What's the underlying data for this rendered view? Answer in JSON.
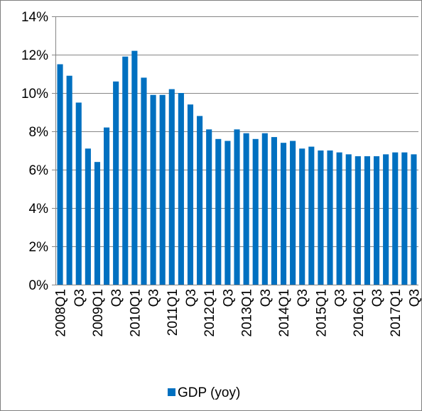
{
  "chart_data": {
    "type": "bar",
    "categories": [
      "2008Q1",
      "2008Q2",
      "2008Q3",
      "2008Q4",
      "2009Q1",
      "2009Q2",
      "2009Q3",
      "2009Q4",
      "2010Q1",
      "2010Q2",
      "2010Q3",
      "2010Q4",
      "2011Q1",
      "2011Q2",
      "2011Q3",
      "2011Q4",
      "2012Q1",
      "2012Q2",
      "2012Q3",
      "2012Q4",
      "2013Q1",
      "2013Q2",
      "2013Q3",
      "2013Q4",
      "2014Q1",
      "2014Q2",
      "2014Q3",
      "2014Q4",
      "2015Q1",
      "2015Q2",
      "2015Q3",
      "2015Q4",
      "2016Q1",
      "2016Q2",
      "2016Q3",
      "2016Q4",
      "2017Q1",
      "2017Q2",
      "2017Q3"
    ],
    "tick_labels": [
      "2008Q1",
      "",
      "Q3",
      "",
      "2009Q1",
      "",
      "Q3",
      "",
      "2010Q1",
      "",
      "Q3",
      "",
      "2011Q1",
      "",
      "Q3",
      "",
      "2012Q1",
      "",
      "Q3",
      "",
      "2013Q1",
      "",
      "Q3",
      "",
      "2014Q1",
      "",
      "Q3",
      "",
      "2015Q1",
      "",
      "Q3",
      "",
      "2016Q1",
      "",
      "Q3",
      "",
      "2017Q1",
      "",
      "Q3"
    ],
    "series": [
      {
        "name": "GDP (yoy)",
        "color": "#0070c0",
        "values": [
          11.5,
          10.9,
          9.5,
          7.1,
          6.4,
          8.2,
          10.6,
          11.9,
          12.2,
          10.8,
          9.9,
          9.9,
          10.2,
          10.0,
          9.4,
          8.8,
          8.1,
          7.6,
          7.5,
          8.1,
          7.9,
          7.6,
          7.9,
          7.7,
          7.4,
          7.5,
          7.1,
          7.2,
          7.0,
          7.0,
          6.9,
          6.8,
          6.7,
          6.7,
          6.7,
          6.8,
          6.9,
          6.9,
          6.8
        ]
      }
    ],
    "y_ticks": [
      0,
      2,
      4,
      6,
      8,
      10,
      12,
      14
    ],
    "y_tick_labels": [
      "0%",
      "2%",
      "4%",
      "6%",
      "8%",
      "10%",
      "12%",
      "14%"
    ],
    "ylim": [
      0,
      14
    ],
    "grid": true,
    "legend": {
      "placement": "bottom-center",
      "entries": [
        "GDP (yoy)"
      ]
    }
  }
}
